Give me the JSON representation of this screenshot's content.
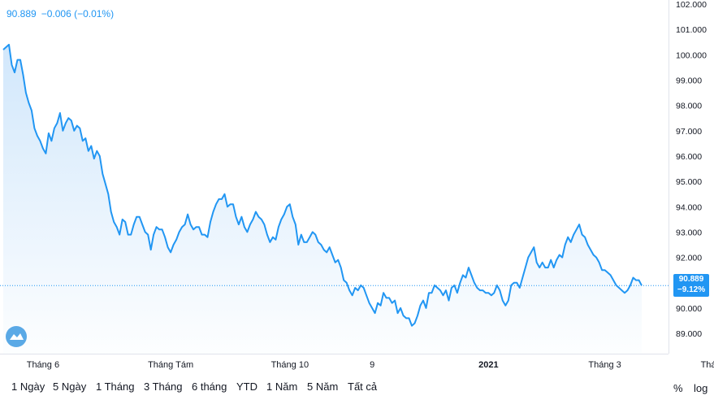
{
  "legend": {
    "value": "90.889",
    "change": "−0.006 (−0.01%)"
  },
  "price_tag": {
    "value": "90.889",
    "change": "−9.12%"
  },
  "colors": {
    "line": "#2196f3",
    "area_top": "#cfe6fb",
    "axis_text": "#131722",
    "tag_bg": "#2196f3"
  },
  "logo": {
    "icon": "tradingview-logo-icon"
  },
  "range_buttons": [
    "1 Ngày",
    "5 Ngày",
    "1 Tháng",
    "3 Tháng",
    "6 tháng",
    "YTD",
    "1 Năm",
    "5 Năm",
    "Tất cả"
  ],
  "options": {
    "percent": "%",
    "log": "log"
  },
  "chart_data": {
    "type": "area",
    "title": "",
    "xlabel": "",
    "ylabel": "",
    "ylim": [
      88.2,
      102.0
    ],
    "y_ticks": [
      "102.000",
      "101.000",
      "100.000",
      "99.000",
      "98.000",
      "97.000",
      "96.000",
      "95.000",
      "94.000",
      "93.000",
      "92.000",
      "91.000",
      "90.000",
      "89.000"
    ],
    "x_ticks": [
      {
        "label": "Tháng 6",
        "index": 14
      },
      {
        "label": "Tháng Tám",
        "index": 59
      },
      {
        "label": "Tháng 10",
        "index": 101
      },
      {
        "label": "9",
        "index": 130
      },
      {
        "label": "2021",
        "index": 171
      },
      {
        "label": "Tháng 3",
        "index": 212
      },
      {
        "label": "Tháng Năm",
        "index": 254
      }
    ],
    "grid": false,
    "last_value": 90.889,
    "series": [
      {
        "values": [
          100.2,
          100.3,
          100.4,
          99.6,
          99.3,
          99.8,
          99.8,
          99.2,
          98.5,
          98.1,
          97.8,
          97.1,
          96.8,
          96.6,
          96.3,
          96.1,
          96.9,
          96.6,
          97.1,
          97.3,
          97.7,
          97.0,
          97.3,
          97.5,
          97.4,
          97.0,
          97.2,
          97.1,
          96.6,
          96.7,
          96.2,
          96.4,
          95.9,
          96.2,
          96.0,
          95.3,
          94.9,
          94.5,
          93.8,
          93.4,
          93.2,
          92.9,
          93.5,
          93.4,
          92.9,
          92.9,
          93.3,
          93.6,
          93.6,
          93.3,
          93.0,
          92.9,
          92.3,
          92.9,
          93.2,
          93.1,
          93.1,
          92.8,
          92.4,
          92.2,
          92.5,
          92.7,
          93.0,
          93.2,
          93.3,
          93.7,
          93.3,
          93.1,
          93.2,
          93.2,
          92.9,
          92.9,
          92.8,
          93.4,
          93.8,
          94.1,
          94.3,
          94.3,
          94.5,
          94.0,
          94.1,
          94.1,
          93.6,
          93.3,
          93.6,
          93.2,
          93.0,
          93.3,
          93.5,
          93.8,
          93.6,
          93.5,
          93.3,
          92.9,
          92.6,
          92.8,
          92.7,
          93.2,
          93.5,
          93.7,
          94.0,
          94.1,
          93.6,
          93.3,
          92.5,
          92.9,
          92.6,
          92.6,
          92.8,
          93.0,
          92.9,
          92.6,
          92.5,
          92.3,
          92.2,
          92.4,
          92.1,
          91.8,
          91.9,
          91.6,
          91.1,
          91.0,
          90.7,
          90.5,
          90.8,
          90.7,
          90.9,
          90.8,
          90.5,
          90.2,
          90.0,
          89.8,
          90.2,
          90.1,
          90.6,
          90.4,
          90.4,
          90.2,
          90.3,
          89.8,
          90.0,
          89.7,
          89.6,
          89.6,
          89.3,
          89.4,
          89.7,
          90.1,
          90.3,
          90.0,
          90.6,
          90.6,
          90.9,
          90.8,
          90.7,
          90.5,
          90.7,
          90.3,
          90.8,
          90.9,
          90.6,
          91.0,
          91.3,
          91.2,
          91.6,
          91.3,
          91.0,
          90.8,
          90.7,
          90.7,
          90.6,
          90.6,
          90.5,
          90.6,
          90.9,
          90.7,
          90.3,
          90.1,
          90.3,
          90.9,
          91.0,
          91.0,
          90.8,
          91.2,
          91.6,
          92.0,
          92.2,
          92.4,
          91.8,
          91.6,
          91.8,
          91.6,
          91.6,
          91.9,
          91.6,
          91.9,
          92.1,
          92.0,
          92.5,
          92.8,
          92.6,
          92.9,
          93.1,
          93.3,
          92.9,
          92.8,
          92.5,
          92.3,
          92.1,
          92.0,
          91.8,
          91.5,
          91.5,
          91.4,
          91.3,
          91.1,
          90.9,
          90.8,
          90.7,
          90.6,
          90.7,
          90.9,
          91.2,
          91.1,
          91.1,
          90.89
        ]
      }
    ]
  }
}
